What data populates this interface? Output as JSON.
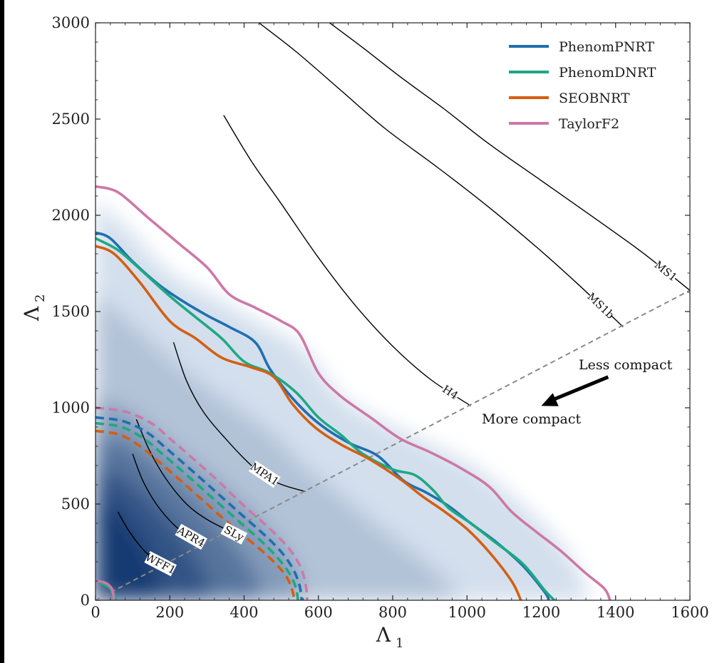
{
  "chart_data": {
    "type": "line",
    "xlabel": "Λ",
    "xlabel_sub": "1",
    "ylabel": "Λ",
    "ylabel_sub": "2",
    "xlim": [
      0,
      1600
    ],
    "ylim": [
      0,
      3000
    ],
    "xticks": [
      "0",
      "200",
      "400",
      "600",
      "800",
      "1000",
      "1200",
      "1400",
      "1600"
    ],
    "yticks": [
      "0",
      "500",
      "1000",
      "1500",
      "2000",
      "2500",
      "3000"
    ],
    "legend_position": "top-right",
    "colors": {
      "PhenomPNRT": "#1f6fb0",
      "PhenomDNRT": "#1ea883",
      "SEOBNRT": "#d35f10",
      "TaylorF2": "#cc79a7",
      "eos": "#000000",
      "diagonal": "#8a8a8a",
      "density_dark": "#08306b",
      "density_light": "#eaf2fb"
    },
    "series": [
      {
        "name": "PhenomPNRT",
        "style": "solid",
        "points": [
          [
            0,
            1910
          ],
          [
            40,
            1880
          ],
          [
            100,
            1760
          ],
          [
            170,
            1640
          ],
          [
            230,
            1560
          ],
          [
            300,
            1480
          ],
          [
            360,
            1420
          ],
          [
            430,
            1340
          ],
          [
            470,
            1200
          ],
          [
            530,
            1050
          ],
          [
            600,
            920
          ],
          [
            680,
            820
          ],
          [
            760,
            750
          ],
          [
            830,
            620
          ],
          [
            890,
            560
          ],
          [
            950,
            490
          ],
          [
            1010,
            400
          ],
          [
            1080,
            300
          ],
          [
            1150,
            180
          ],
          [
            1210,
            40
          ],
          [
            1220,
            0
          ]
        ]
      },
      {
        "name": "PhenomDNRT",
        "style": "solid",
        "points": [
          [
            0,
            1880
          ],
          [
            60,
            1820
          ],
          [
            120,
            1720
          ],
          [
            200,
            1580
          ],
          [
            270,
            1470
          ],
          [
            340,
            1360
          ],
          [
            400,
            1240
          ],
          [
            470,
            1180
          ],
          [
            540,
            1080
          ],
          [
            600,
            950
          ],
          [
            660,
            860
          ],
          [
            720,
            760
          ],
          [
            800,
            680
          ],
          [
            860,
            650
          ],
          [
            910,
            570
          ],
          [
            950,
            480
          ],
          [
            1010,
            400
          ],
          [
            1070,
            310
          ],
          [
            1150,
            190
          ],
          [
            1210,
            50
          ],
          [
            1235,
            0
          ]
        ]
      },
      {
        "name": "SEOBNRT",
        "style": "solid",
        "points": [
          [
            0,
            1840
          ],
          [
            50,
            1800
          ],
          [
            120,
            1650
          ],
          [
            200,
            1450
          ],
          [
            270,
            1360
          ],
          [
            340,
            1260
          ],
          [
            420,
            1210
          ],
          [
            480,
            1160
          ],
          [
            530,
            1020
          ],
          [
            590,
            900
          ],
          [
            660,
            810
          ],
          [
            740,
            730
          ],
          [
            820,
            630
          ],
          [
            880,
            540
          ],
          [
            940,
            460
          ],
          [
            1000,
            370
          ],
          [
            1060,
            250
          ],
          [
            1120,
            100
          ],
          [
            1145,
            0
          ]
        ]
      },
      {
        "name": "TaylorF2",
        "style": "solid",
        "points": [
          [
            0,
            2150
          ],
          [
            60,
            2120
          ],
          [
            140,
            1990
          ],
          [
            220,
            1860
          ],
          [
            300,
            1730
          ],
          [
            360,
            1590
          ],
          [
            430,
            1520
          ],
          [
            500,
            1450
          ],
          [
            550,
            1380
          ],
          [
            600,
            1180
          ],
          [
            660,
            1060
          ],
          [
            740,
            950
          ],
          [
            820,
            840
          ],
          [
            900,
            770
          ],
          [
            980,
            690
          ],
          [
            1060,
            590
          ],
          [
            1120,
            460
          ],
          [
            1190,
            350
          ],
          [
            1250,
            260
          ],
          [
            1320,
            140
          ],
          [
            1370,
            60
          ],
          [
            1385,
            0
          ]
        ]
      }
    ],
    "inner_contours": [
      {
        "name": "TaylorF2",
        "style": "dashed",
        "points": [
          [
            0,
            1000
          ],
          [
            80,
            980
          ],
          [
            150,
            920
          ],
          [
            200,
            840
          ],
          [
            260,
            740
          ],
          [
            330,
            620
          ],
          [
            400,
            490
          ],
          [
            470,
            370
          ],
          [
            520,
            270
          ],
          [
            550,
            180
          ],
          [
            565,
            90
          ],
          [
            570,
            0
          ]
        ]
      },
      {
        "name": "PhenomPNRT",
        "style": "dashed",
        "points": [
          [
            0,
            950
          ],
          [
            75,
            930
          ],
          [
            140,
            870
          ],
          [
            190,
            790
          ],
          [
            250,
            690
          ],
          [
            320,
            570
          ],
          [
            390,
            450
          ],
          [
            460,
            330
          ],
          [
            505,
            240
          ],
          [
            535,
            150
          ],
          [
            550,
            70
          ],
          [
            555,
            0
          ]
        ]
      },
      {
        "name": "PhenomDNRT",
        "style": "dashed",
        "points": [
          [
            0,
            920
          ],
          [
            70,
            900
          ],
          [
            130,
            840
          ],
          [
            180,
            760
          ],
          [
            240,
            660
          ],
          [
            310,
            540
          ],
          [
            380,
            420
          ],
          [
            450,
            300
          ],
          [
            495,
            210
          ],
          [
            525,
            130
          ],
          [
            540,
            60
          ],
          [
            545,
            0
          ]
        ]
      },
      {
        "name": "SEOBNRT",
        "style": "dashed",
        "points": [
          [
            0,
            880
          ],
          [
            65,
            860
          ],
          [
            120,
            800
          ],
          [
            170,
            720
          ],
          [
            230,
            620
          ],
          [
            300,
            500
          ],
          [
            370,
            380
          ],
          [
            440,
            270
          ],
          [
            485,
            190
          ],
          [
            515,
            120
          ],
          [
            530,
            50
          ],
          [
            535,
            0
          ]
        ]
      },
      {
        "name": "PhenomDNRT",
        "style": "solid",
        "points": [
          [
            10,
            90
          ],
          [
            25,
            80
          ],
          [
            40,
            60
          ],
          [
            50,
            30
          ],
          [
            55,
            0
          ]
        ]
      },
      {
        "name": "TaylorF2",
        "style": "solid",
        "points": [
          [
            0,
            100
          ],
          [
            20,
            95
          ],
          [
            35,
            80
          ],
          [
            45,
            55
          ],
          [
            50,
            0
          ]
        ]
      }
    ],
    "eos_curves": [
      {
        "name": "MS1",
        "label": "MS1",
        "points": [
          [
            630,
            3000
          ],
          [
            720,
            2870
          ],
          [
            820,
            2720
          ],
          [
            940,
            2550
          ],
          [
            1060,
            2370
          ],
          [
            1200,
            2180
          ],
          [
            1340,
            1990
          ],
          [
            1470,
            1810
          ],
          [
            1600,
            1610
          ]
        ]
      },
      {
        "name": "MS1b",
        "label": "MS1b",
        "points": [
          [
            440,
            3000
          ],
          [
            540,
            2850
          ],
          [
            660,
            2650
          ],
          [
            780,
            2450
          ],
          [
            920,
            2250
          ],
          [
            1060,
            2040
          ],
          [
            1190,
            1830
          ],
          [
            1300,
            1640
          ],
          [
            1420,
            1420
          ]
        ]
      },
      {
        "name": "H4",
        "label": "H4",
        "points": [
          [
            345,
            2520
          ],
          [
            420,
            2280
          ],
          [
            500,
            2060
          ],
          [
            600,
            1780
          ],
          [
            700,
            1530
          ],
          [
            800,
            1320
          ],
          [
            900,
            1150
          ],
          [
            1010,
            1010
          ]
        ]
      },
      {
        "name": "MPA1",
        "label": "MPA1",
        "points": [
          [
            210,
            1340
          ],
          [
            245,
            1140
          ],
          [
            290,
            980
          ],
          [
            350,
            840
          ],
          [
            420,
            700
          ],
          [
            490,
            610
          ],
          [
            565,
            565
          ]
        ]
      },
      {
        "name": "SLy",
        "label": "SLy",
        "points": [
          [
            110,
            940
          ],
          [
            145,
            780
          ],
          [
            190,
            630
          ],
          [
            245,
            500
          ],
          [
            300,
            420
          ],
          [
            360,
            360
          ],
          [
            385,
            335
          ]
        ]
      },
      {
        "name": "APR4",
        "label": "APR4",
        "points": [
          [
            100,
            760
          ],
          [
            130,
            610
          ],
          [
            175,
            470
          ],
          [
            230,
            360
          ],
          [
            285,
            300
          ]
        ]
      },
      {
        "name": "WFF1",
        "label": "WFF1",
        "points": [
          [
            60,
            460
          ],
          [
            90,
            360
          ],
          [
            130,
            260
          ],
          [
            165,
            200
          ],
          [
            185,
            180
          ]
        ]
      }
    ],
    "diagonal": {
      "points": [
        [
          0,
          0
        ],
        [
          1600,
          1610
        ]
      ],
      "style": "dashed"
    },
    "annotations": {
      "less_compact": "Less compact",
      "more_compact": "More compact",
      "arrow": {
        "from": [
          1380,
          1160
        ],
        "to": [
          1200,
          1010
        ]
      }
    },
    "density": {
      "peak": [
        20,
        420
      ],
      "contours": [
        {
          "level": 0.1,
          "points": [
            [
              0,
              2080
            ],
            [
              100,
              1900
            ],
            [
              200,
              1700
            ],
            [
              330,
              1560
            ],
            [
              450,
              1430
            ],
            [
              560,
              1300
            ],
            [
              660,
              1060
            ],
            [
              780,
              920
            ],
            [
              900,
              810
            ],
            [
              1020,
              690
            ],
            [
              1120,
              540
            ],
            [
              1220,
              360
            ],
            [
              1290,
              190
            ],
            [
              1320,
              60
            ],
            [
              1330,
              0
            ],
            [
              0,
              0
            ]
          ]
        },
        {
          "level": 0.25,
          "points": [
            [
              0,
              1600
            ],
            [
              120,
              1400
            ],
            [
              250,
              1180
            ],
            [
              380,
              1000
            ],
            [
              480,
              860
            ],
            [
              560,
              700
            ],
            [
              640,
              580
            ],
            [
              720,
              450
            ],
            [
              800,
              330
            ],
            [
              880,
              210
            ],
            [
              950,
              90
            ],
            [
              980,
              0
            ],
            [
              0,
              0
            ]
          ]
        },
        {
          "level": 0.45,
          "points": [
            [
              0,
              1050
            ],
            [
              80,
              990
            ],
            [
              170,
              860
            ],
            [
              260,
              720
            ],
            [
              340,
              600
            ],
            [
              410,
              480
            ],
            [
              470,
              360
            ],
            [
              520,
              230
            ],
            [
              550,
              110
            ],
            [
              560,
              0
            ],
            [
              0,
              0
            ]
          ]
        },
        {
          "level": 0.65,
          "points": [
            [
              0,
              850
            ],
            [
              80,
              820
            ],
            [
              160,
              700
            ],
            [
              240,
              570
            ],
            [
              300,
              450
            ],
            [
              360,
              330
            ],
            [
              410,
              200
            ],
            [
              440,
              90
            ],
            [
              450,
              0
            ],
            [
              0,
              0
            ]
          ]
        },
        {
          "level": 0.82,
          "points": [
            [
              0,
              680
            ],
            [
              60,
              650
            ],
            [
              120,
              560
            ],
            [
              180,
              450
            ],
            [
              230,
              340
            ],
            [
              270,
              230
            ],
            [
              300,
              110
            ],
            [
              310,
              0
            ],
            [
              0,
              0
            ]
          ]
        },
        {
          "level": 0.95,
          "points": [
            [
              0,
              520
            ],
            [
              40,
              500
            ],
            [
              80,
              420
            ],
            [
              120,
              320
            ],
            [
              150,
              210
            ],
            [
              170,
              100
            ],
            [
              175,
              0
            ],
            [
              0,
              0
            ]
          ]
        }
      ]
    }
  }
}
